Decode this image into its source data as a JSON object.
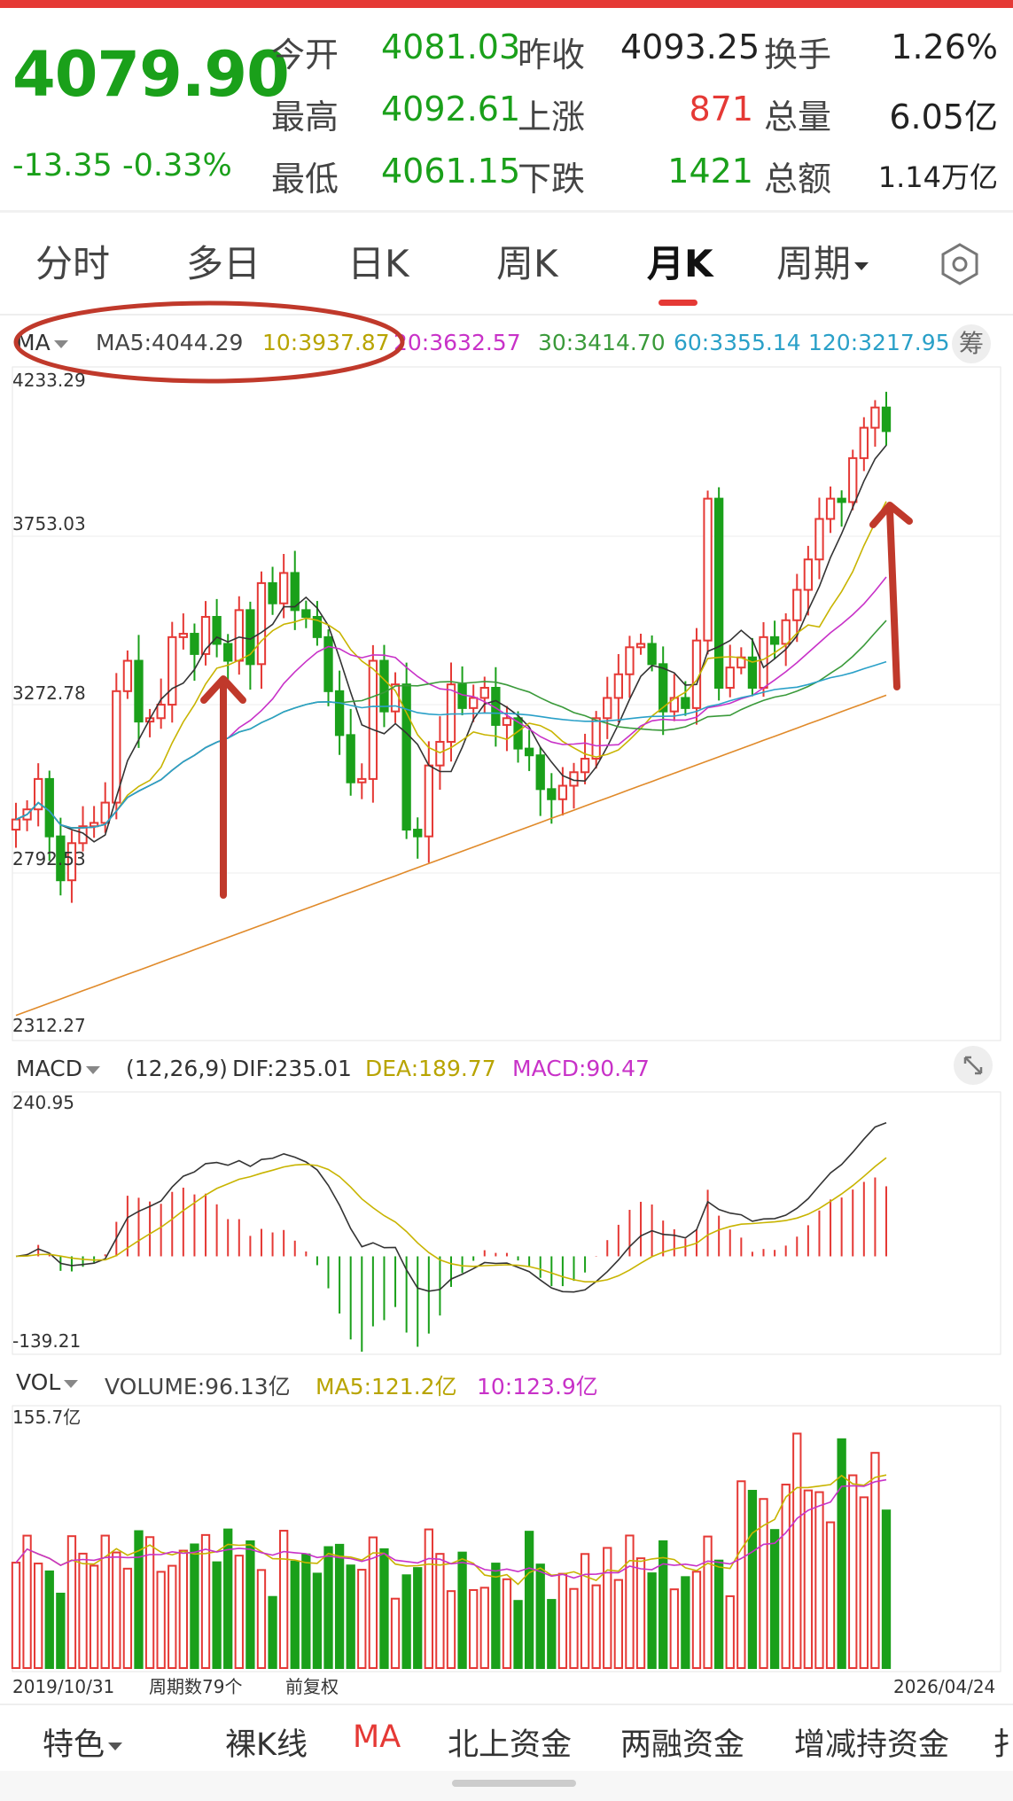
{
  "quote": {
    "price": "4079.90",
    "change": "-13.35",
    "change_pct": "-0.33%",
    "rows": [
      {
        "l1": "今开",
        "v1": "4081.03",
        "l2": "昨收",
        "v2": "4093.25",
        "l3": "换手",
        "v3": "1.26%"
      },
      {
        "l1": "最高",
        "v1": "4092.61",
        "l2": "上涨",
        "v2": "871",
        "l3": "总量",
        "v3": "6.05亿"
      },
      {
        "l1": "最低",
        "v1": "4061.15",
        "l2": "下跌",
        "v2": "1421",
        "l3": "总额",
        "v3": "1.14万亿"
      }
    ]
  },
  "tabs": [
    {
      "label": "分时"
    },
    {
      "label": "多日"
    },
    {
      "label": "日K"
    },
    {
      "label": "周K"
    },
    {
      "label": "月K",
      "active": true
    },
    {
      "label": "周期"
    }
  ],
  "ma_legend": {
    "selector": "MA",
    "ma5": "MA5:4044.29",
    "ma10": "10:3937.87",
    "ma20": "20:3632.57",
    "ma30": "30:3414.70",
    "ma60": "60:3355.14",
    "ma120": "120:3217.95",
    "chip_label": "筹"
  },
  "macd_legend": {
    "selector": "MACD",
    "params": "(12,26,9)",
    "dif": "DIF:235.01",
    "dea": "DEA:189.77",
    "macd": "MACD:90.47"
  },
  "vol_legend": {
    "selector": "VOL",
    "volume": "VOLUME:96.13亿",
    "ma5": "MA5:121.2亿",
    "ma10": "10:123.9亿"
  },
  "axis": {
    "price_ticks": [
      "4233.29",
      "3753.03",
      "3272.78",
      "2792.53",
      "2312.27"
    ],
    "macd_ticks": [
      "240.95",
      "-139.21"
    ],
    "vol_tick": "155.7亿",
    "start_date": "2019/10/31",
    "period_count": "周期数79个",
    "adjust": "前复权",
    "end_date": "2026/04/24"
  },
  "bottom_bar": [
    {
      "label": "特色",
      "dropdown": true
    },
    {
      "label": "裸K线"
    },
    {
      "label": "MA",
      "active": true
    },
    {
      "label": "北上资金"
    },
    {
      "label": "两融资金"
    },
    {
      "label": "增减持资金"
    },
    {
      "label": "扌"
    }
  ],
  "colors": {
    "up": "#e53935",
    "down": "#1aa01a",
    "ma5": "#333333",
    "ma10": "#c8b400",
    "ma20": "#c832c8",
    "ma30": "#3a9a3a",
    "ma60": "#2aa0c8",
    "ma120": "#e08a2a"
  },
  "chart_data": {
    "type": "candlestick",
    "title": "",
    "period": "monthly",
    "x_range": [
      "2019/10/31",
      "2026/04/24"
    ],
    "count": 79,
    "ylim": [
      2312.27,
      4233.29
    ],
    "closes": [
      2930,
      2960,
      3050,
      2880,
      2750,
      2860,
      2910,
      2920,
      2980,
      3310,
      3400,
      3220,
      3230,
      3270,
      3470,
      3480,
      3420,
      3530,
      3450,
      3400,
      3550,
      3390,
      3630,
      3570,
      3660,
      3550,
      3530,
      3470,
      3310,
      3180,
      3040,
      3050,
      3400,
      3250,
      3330,
      2900,
      2880,
      3090,
      3160,
      3330,
      3260,
      3290,
      3320,
      3210,
      3230,
      3140,
      3120,
      3020,
      2990,
      3030,
      3070,
      3110,
      3230,
      3290,
      3360,
      3440,
      3450,
      3390,
      3250,
      3290,
      3260,
      3460,
      3880,
      3320,
      3380,
      3410,
      3320,
      3470,
      3450,
      3520,
      3610,
      3700,
      3820,
      3880,
      3870,
      4000,
      4090,
      4150,
      4080
    ],
    "ma_values": {
      "MA5": 4044.29,
      "MA10": 3937.87,
      "MA20": 3632.57,
      "MA30": 3414.7,
      "MA60": 3355.14,
      "MA120": 3217.95
    },
    "macd": {
      "ylim": [
        -139.21,
        240.95
      ],
      "DIF": 235.01,
      "DEA": 189.77,
      "MACD": 90.47
    },
    "volume": {
      "ymax": 155.7,
      "unit": "亿",
      "latest": 96.13,
      "MA5": 121.2,
      "MA10": 123.9
    }
  }
}
